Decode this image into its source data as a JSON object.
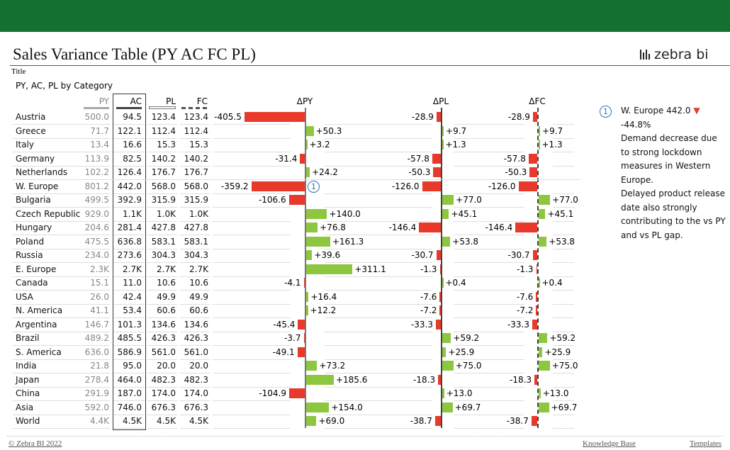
{
  "header": {
    "title": "Sales Variance Table (PY AC FC PL)",
    "logo_text": "zebra bi",
    "small_label": "Title",
    "subtitle": "PY, AC, PL by Category"
  },
  "columns": {
    "py": "PY",
    "ac": "AC",
    "pl": "PL",
    "fc": "FC",
    "dpy": "ΔPY",
    "dpl": "ΔPL",
    "dfc": "ΔFC"
  },
  "colors": {
    "positive": "#8dc63f",
    "negative": "#e8392a",
    "brand": "#13702f",
    "annotation": "#2e6fc1"
  },
  "rows": [
    {
      "name": "Austria",
      "py": "500.0",
      "ac": "94.5",
      "pl": "123.4",
      "fc": "123.4",
      "dpy": -405.5,
      "dpl": -28.9,
      "dfc": -28.9
    },
    {
      "name": "Greece",
      "py": "71.7",
      "ac": "122.1",
      "pl": "112.4",
      "fc": "112.4",
      "dpy": 50.3,
      "dpl": 9.7,
      "dfc": 9.7
    },
    {
      "name": "Italy",
      "py": "13.4",
      "ac": "16.6",
      "pl": "15.3",
      "fc": "15.3",
      "dpy": 3.2,
      "dpl": 1.3,
      "dfc": 1.3
    },
    {
      "name": "Germany",
      "py": "113.9",
      "ac": "82.5",
      "pl": "140.2",
      "fc": "140.2",
      "dpy": -31.4,
      "dpl": -57.8,
      "dfc": -57.8
    },
    {
      "name": "Netherlands",
      "py": "102.2",
      "ac": "126.4",
      "pl": "176.7",
      "fc": "176.7",
      "dpy": 24.2,
      "dpl": -50.3,
      "dfc": -50.3
    },
    {
      "name": "W. Europe",
      "py": "801.2",
      "ac": "442.0",
      "pl": "568.0",
      "fc": "568.0",
      "dpy": -359.2,
      "dpl": -126.0,
      "dfc": -126.0,
      "marker": "1"
    },
    {
      "name": "Bulgaria",
      "py": "499.5",
      "ac": "392.9",
      "pl": "315.9",
      "fc": "315.9",
      "dpy": -106.6,
      "dpl": 77.0,
      "dfc": 77.0
    },
    {
      "name": "Czech Republic",
      "py": "929.0",
      "ac": "1.1K",
      "pl": "1.0K",
      "fc": "1.0K",
      "dpy": 140.0,
      "dpl": 45.1,
      "dfc": 45.1
    },
    {
      "name": "Hungary",
      "py": "204.6",
      "ac": "281.4",
      "pl": "427.8",
      "fc": "427.8",
      "dpy": 76.8,
      "dpl": -146.4,
      "dfc": -146.4
    },
    {
      "name": "Poland",
      "py": "475.5",
      "ac": "636.8",
      "pl": "583.1",
      "fc": "583.1",
      "dpy": 161.3,
      "dpl": 53.8,
      "dfc": 53.8
    },
    {
      "name": "Russia",
      "py": "234.0",
      "ac": "273.6",
      "pl": "304.3",
      "fc": "304.3",
      "dpy": 39.6,
      "dpl": -30.7,
      "dfc": -30.7
    },
    {
      "name": "E. Europe",
      "py": "2.3K",
      "ac": "2.7K",
      "pl": "2.7K",
      "fc": "2.7K",
      "dpy": 311.1,
      "dpl": -1.3,
      "dfc": -1.3
    },
    {
      "name": "Canada",
      "py": "15.1",
      "ac": "11.0",
      "pl": "10.6",
      "fc": "10.6",
      "dpy": -4.1,
      "dpl": 0.4,
      "dfc": 0.4
    },
    {
      "name": "USA",
      "py": "26.0",
      "ac": "42.4",
      "pl": "49.9",
      "fc": "49.9",
      "dpy": 16.4,
      "dpl": -7.6,
      "dfc": -7.6
    },
    {
      "name": "N. America",
      "py": "41.1",
      "ac": "53.4",
      "pl": "60.6",
      "fc": "60.6",
      "dpy": 12.2,
      "dpl": -7.2,
      "dfc": -7.2
    },
    {
      "name": "Argentina",
      "py": "146.7",
      "ac": "101.3",
      "pl": "134.6",
      "fc": "134.6",
      "dpy": -45.4,
      "dpl": -33.3,
      "dfc": -33.3
    },
    {
      "name": "Brazil",
      "py": "489.2",
      "ac": "485.5",
      "pl": "426.3",
      "fc": "426.3",
      "dpy": -3.7,
      "dpl": 59.2,
      "dfc": 59.2
    },
    {
      "name": "S. America",
      "py": "636.0",
      "ac": "586.9",
      "pl": "561.0",
      "fc": "561.0",
      "dpy": -49.1,
      "dpl": 25.9,
      "dfc": 25.9
    },
    {
      "name": "India",
      "py": "21.8",
      "ac": "95.0",
      "pl": "20.0",
      "fc": "20.0",
      "dpy": 73.2,
      "dpl": 75.0,
      "dfc": 75.0
    },
    {
      "name": "Japan",
      "py": "278.4",
      "ac": "464.0",
      "pl": "482.3",
      "fc": "482.3",
      "dpy": 185.6,
      "dpl": -18.3,
      "dfc": -18.3
    },
    {
      "name": "China",
      "py": "291.9",
      "ac": "187.0",
      "pl": "174.0",
      "fc": "174.0",
      "dpy": -104.9,
      "dpl": 13.0,
      "dfc": 13.0
    },
    {
      "name": "Asia",
      "py": "592.0",
      "ac": "746.0",
      "pl": "676.3",
      "fc": "676.3",
      "dpy": 154.0,
      "dpl": 69.7,
      "dfc": 69.7
    },
    {
      "name": "World",
      "py": "4.4K",
      "ac": "4.5K",
      "pl": "4.5K",
      "fc": "4.5K",
      "dpy": 69.0,
      "dpl": -38.7,
      "dfc": -38.7
    }
  ],
  "comment": {
    "marker": "1",
    "heading": "W. Europe 442.0",
    "change": "-44.8%",
    "lines": [
      "Demand decrease due to strong lockdown measures in Western Europe.",
      "Delayed product release date also strongly contributing to the vs PY and vs PL gap."
    ]
  },
  "footer": {
    "copyright": "© Zebra BI 2022",
    "knowledge_base": "Knowledge Base",
    "templates": "Templates"
  }
}
